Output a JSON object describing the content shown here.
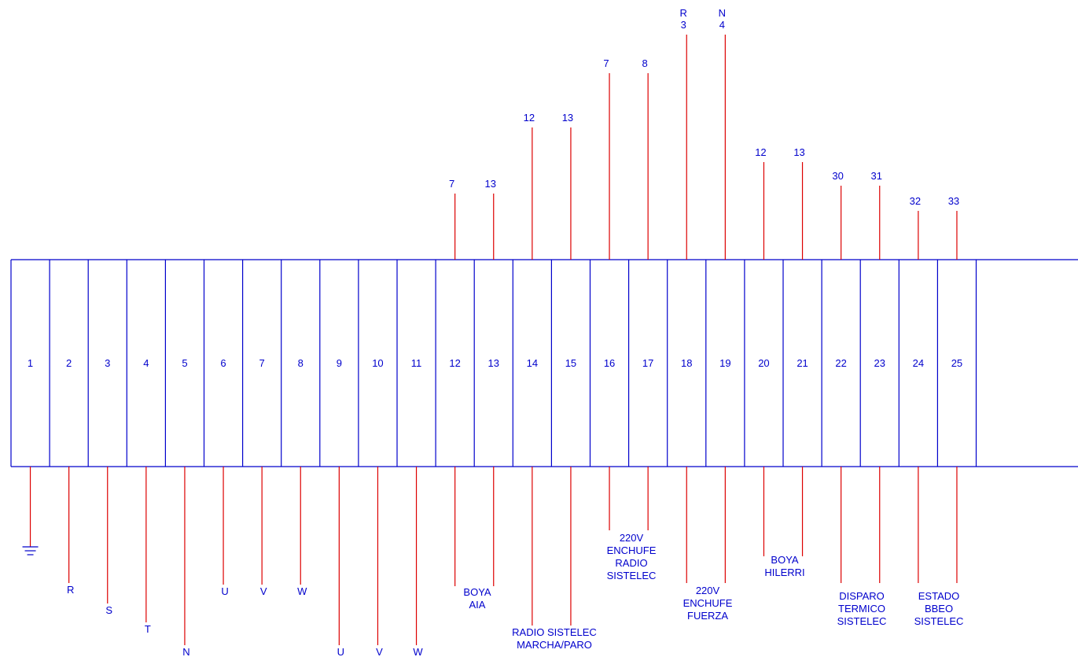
{
  "colors": {
    "frame": "#0000cc",
    "wire": "#dd0000",
    "text": "#0000cc",
    "background": "#ffffff"
  },
  "terminals": [
    {
      "num": "1",
      "top": [],
      "bottom": [],
      "ground": true
    },
    {
      "num": "2",
      "top": [],
      "bottom": [
        "R"
      ]
    },
    {
      "num": "3",
      "top": [],
      "bottom": [
        "S"
      ]
    },
    {
      "num": "4",
      "top": [],
      "bottom": [
        "T"
      ]
    },
    {
      "num": "5",
      "top": [],
      "bottom": [
        "N"
      ]
    },
    {
      "num": "6",
      "top": [],
      "bottom": [
        "U"
      ]
    },
    {
      "num": "7",
      "top": [],
      "bottom": [
        "V"
      ]
    },
    {
      "num": "8",
      "top": [],
      "bottom": [
        "W"
      ]
    },
    {
      "num": "9",
      "top": [],
      "bottom": [
        "U"
      ]
    },
    {
      "num": "10",
      "top": [],
      "bottom": [
        "V"
      ]
    },
    {
      "num": "11",
      "top": [],
      "bottom": [
        "W"
      ]
    },
    {
      "num": "12",
      "top": [
        "7"
      ],
      "bottom": []
    },
    {
      "num": "13",
      "top": [
        "13"
      ],
      "bottom": []
    },
    {
      "num": "14",
      "top": [
        "12"
      ],
      "bottom": []
    },
    {
      "num": "15",
      "top": [
        "13"
      ],
      "bottom": []
    },
    {
      "num": "16",
      "top": [
        "7"
      ],
      "bottom": []
    },
    {
      "num": "17",
      "top": [
        "8"
      ],
      "bottom": []
    },
    {
      "num": "18",
      "top": [
        "R",
        "3"
      ],
      "bottom": []
    },
    {
      "num": "19",
      "top": [
        "N",
        "4"
      ],
      "bottom": []
    },
    {
      "num": "20",
      "top": [
        "12"
      ],
      "bottom": []
    },
    {
      "num": "21",
      "top": [
        "13"
      ],
      "bottom": []
    },
    {
      "num": "22",
      "top": [
        "30"
      ],
      "bottom": []
    },
    {
      "num": "23",
      "top": [
        "31"
      ],
      "bottom": []
    },
    {
      "num": "24",
      "top": [
        "32"
      ],
      "bottom": []
    },
    {
      "num": "25",
      "top": [
        "33"
      ],
      "bottom": []
    }
  ],
  "group_labels": [
    {
      "id": "boya-aia",
      "lines": [
        "BOYA",
        "AIA"
      ]
    },
    {
      "id": "radio-sistelec",
      "lines": [
        "RADIO SISTELEC",
        "MARCHA/PARO"
      ]
    },
    {
      "id": "enchufe-radio",
      "lines": [
        "220V",
        "ENCHUFE",
        "RADIO",
        "SISTELEC"
      ]
    },
    {
      "id": "enchufe-fuerza",
      "lines": [
        "220V",
        "ENCHUFE",
        "FUERZA"
      ]
    },
    {
      "id": "boya-hilerri",
      "lines": [
        "BOYA",
        "HILERRI"
      ]
    },
    {
      "id": "disparo-termico",
      "lines": [
        "DISPARO",
        "TERMICO",
        "SISTELEC"
      ]
    },
    {
      "id": "estado-bbeo",
      "lines": [
        "ESTADO",
        "BBEO",
        "SISTELEC"
      ]
    }
  ]
}
